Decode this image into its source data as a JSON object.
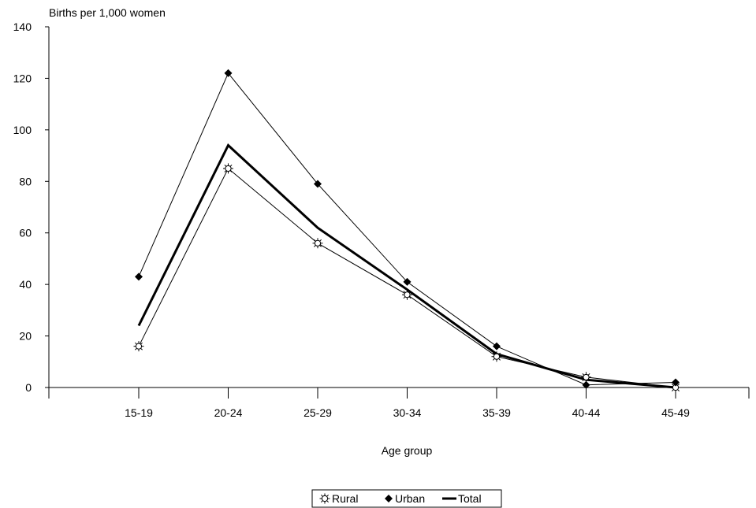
{
  "chart_data": {
    "type": "line",
    "ylabel": "Births per 1,000 women",
    "xlabel": "Age group",
    "categories": [
      "15-19",
      "20-24",
      "25-29",
      "30-34",
      "35-39",
      "40-44",
      "45-49"
    ],
    "ylim": [
      0,
      140
    ],
    "yticks": [
      0,
      20,
      40,
      60,
      80,
      100,
      120,
      140
    ],
    "grid": false,
    "legend_position": "bottom-center",
    "series": [
      {
        "name": "Rural",
        "values": [
          16,
          85,
          56,
          36,
          12,
          4,
          0
        ],
        "marker": "sun-star",
        "line_width": "thin"
      },
      {
        "name": "Urban",
        "values": [
          43,
          122,
          79,
          41,
          16,
          1,
          2
        ],
        "marker": "diamond",
        "line_width": "thin"
      },
      {
        "name": "Total",
        "values": [
          24,
          94,
          62,
          38,
          13,
          3,
          0
        ],
        "marker": "none",
        "line_width": "thick"
      }
    ]
  }
}
